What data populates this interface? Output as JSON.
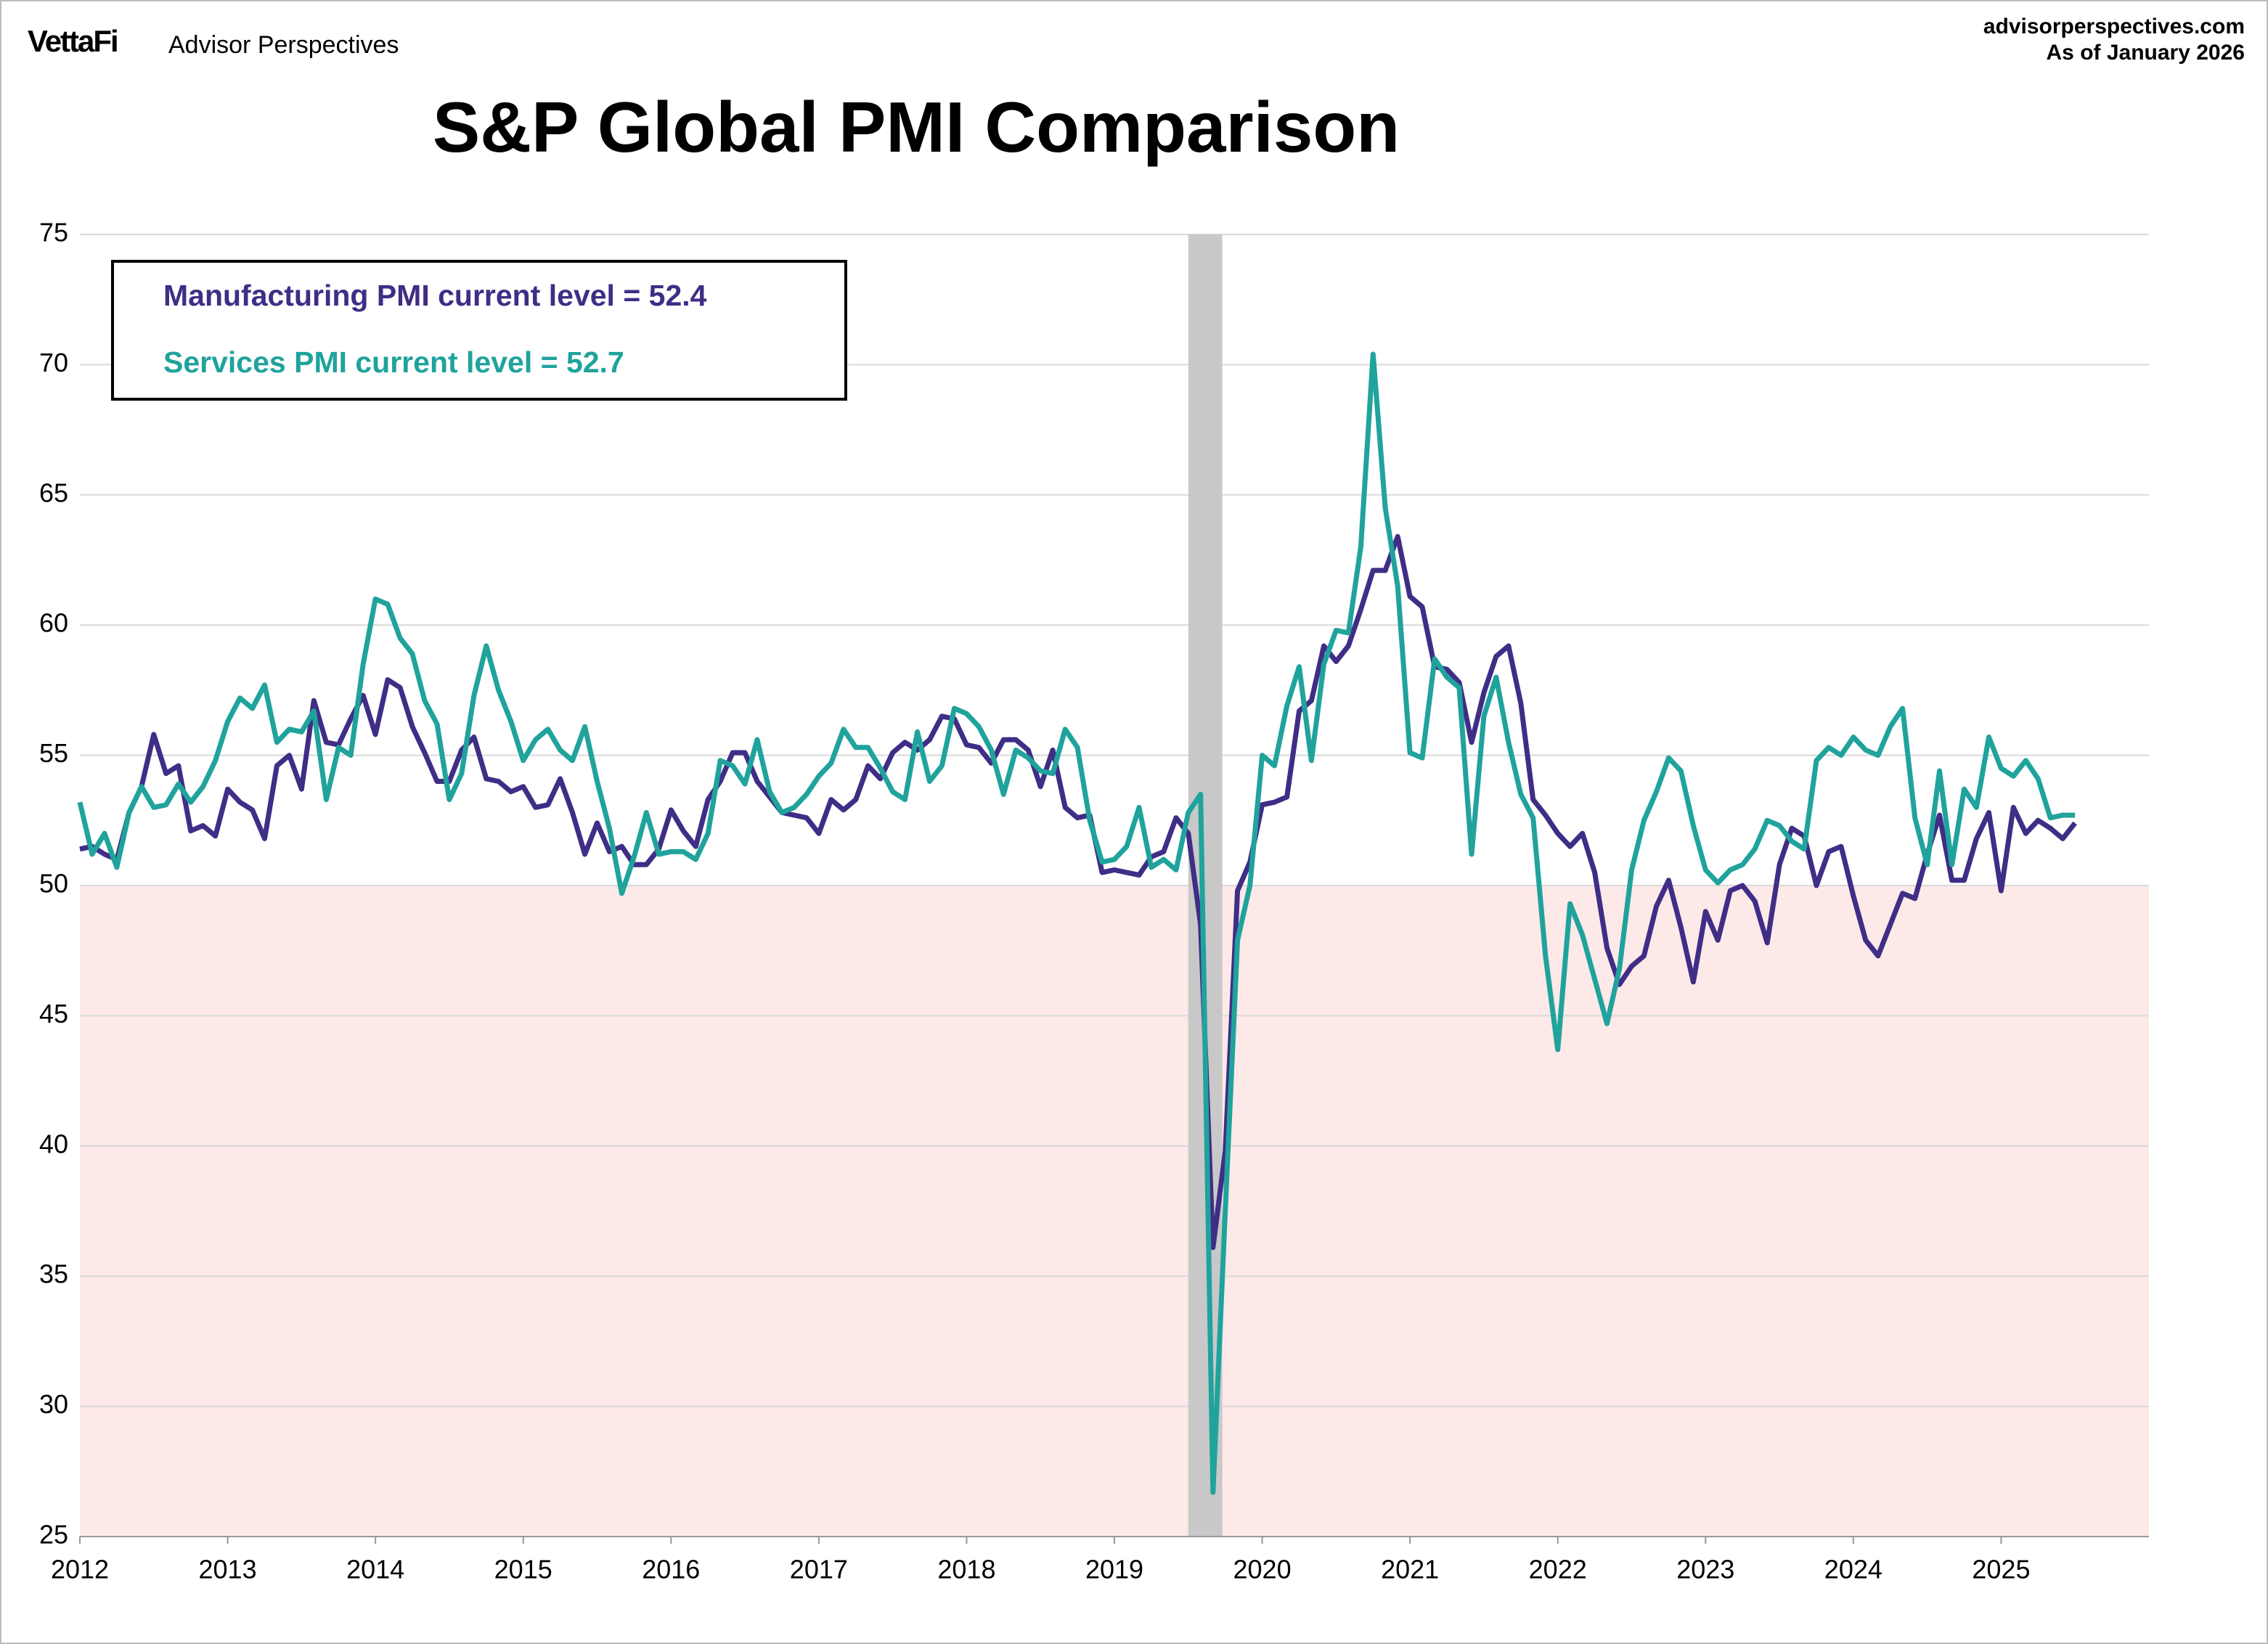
{
  "header": {
    "brand": "VettaFi",
    "publisher": "Advisor Perspectives",
    "site": "advisorperspectives.com",
    "date": "As of January 2026"
  },
  "chart_data": {
    "type": "line",
    "title": "S&P Global PMI Comparison",
    "annotations": [
      {
        "text": "Manufacturing PMI current level = 52.4",
        "color": "#3f2d86"
      },
      {
        "text": "Services PMI current level = 52.7",
        "color": "#1fa39c"
      }
    ],
    "x": [
      2012,
      2012.083,
      2012.167,
      2012.25,
      2012.333,
      2012.417,
      2012.5,
      2012.583,
      2012.667,
      2012.75,
      2012.833,
      2012.917,
      2013,
      2013.083,
      2013.167,
      2013.25,
      2013.333,
      2013.417,
      2013.5,
      2013.583,
      2013.667,
      2013.75,
      2013.833,
      2013.917,
      2014,
      2014.083,
      2014.167,
      2014.25,
      2014.333,
      2014.417,
      2014.5,
      2014.583,
      2014.667,
      2014.75,
      2014.833,
      2014.917,
      2015,
      2015.083,
      2015.167,
      2015.25,
      2015.333,
      2015.417,
      2015.5,
      2015.583,
      2015.667,
      2015.75,
      2015.833,
      2015.917,
      2016,
      2016.083,
      2016.167,
      2016.25,
      2016.333,
      2016.417,
      2016.5,
      2016.583,
      2016.667,
      2016.75,
      2016.833,
      2016.917,
      2017,
      2017.083,
      2017.167,
      2017.25,
      2017.333,
      2017.417,
      2017.5,
      2017.583,
      2017.667,
      2017.75,
      2017.833,
      2017.917,
      2018,
      2018.083,
      2018.167,
      2018.25,
      2018.333,
      2018.417,
      2018.5,
      2018.583,
      2018.667,
      2018.75,
      2018.833,
      2018.917,
      2019,
      2019.083,
      2019.167,
      2019.25,
      2019.333,
      2019.417,
      2019.5,
      2019.583,
      2019.667,
      2019.75,
      2019.833,
      2019.917,
      2020,
      2020.083,
      2020.167,
      2020.25,
      2020.333,
      2020.417,
      2020.5,
      2020.583,
      2020.667,
      2020.75,
      2020.833,
      2020.917,
      2021,
      2021.083,
      2021.167,
      2021.25,
      2021.333,
      2021.417,
      2021.5,
      2021.583,
      2021.667,
      2021.75,
      2021.833,
      2021.917,
      2022,
      2022.083,
      2022.167,
      2022.25,
      2022.333,
      2022.417,
      2022.5,
      2022.583,
      2022.667,
      2022.75,
      2022.833,
      2022.917,
      2023,
      2023.083,
      2023.167,
      2023.25,
      2023.333,
      2023.417,
      2023.5,
      2023.583,
      2023.667,
      2023.75,
      2023.833,
      2023.917,
      2024,
      2024.083,
      2024.167,
      2024.25,
      2024.333,
      2024.417,
      2024.5,
      2024.583,
      2024.667,
      2024.75,
      2024.833,
      2024.917,
      2025,
      2025.083,
      2025.167,
      2025.25,
      2025.333,
      2025.417,
      2025.5
    ],
    "series": [
      {
        "name": "Manufacturing PMI",
        "color": "#3f2d86",
        "values": [
          51.4,
          51.5,
          51.2,
          51.0,
          52.8,
          53.8,
          55.8,
          54.3,
          54.6,
          52.1,
          52.3,
          51.9,
          53.7,
          53.2,
          52.9,
          51.8,
          54.6,
          55.0,
          53.7,
          57.1,
          55.5,
          55.4,
          56.4,
          57.3,
          55.8,
          57.9,
          57.6,
          56.1,
          55.1,
          54.0,
          54.0,
          55.2,
          55.7,
          54.1,
          54.0,
          53.6,
          53.8,
          53.0,
          53.1,
          54.1,
          52.8,
          51.2,
          52.4,
          51.3,
          51.5,
          50.8,
          50.8,
          51.4,
          52.9,
          52.1,
          51.5,
          53.3,
          54.0,
          55.1,
          55.1,
          54.0,
          53.4,
          52.8,
          52.7,
          52.6,
          52.0,
          53.3,
          52.9,
          53.3,
          54.6,
          54.1,
          55.1,
          55.5,
          55.2,
          55.6,
          56.5,
          56.4,
          55.4,
          55.3,
          54.7,
          55.6,
          55.6,
          55.2,
          53.8,
          55.2,
          53.0,
          52.6,
          52.7,
          50.5,
          50.6,
          50.5,
          50.4,
          51.1,
          51.3,
          52.6,
          52.0,
          48.5,
          36.1,
          39.8,
          49.8,
          50.9,
          53.1,
          53.2,
          53.4,
          56.7,
          57.1,
          59.2,
          58.6,
          59.2,
          60.6,
          62.1,
          62.1,
          63.4,
          61.1,
          60.7,
          58.4,
          58.3,
          57.8,
          55.5,
          57.4,
          58.8,
          59.2,
          57.0,
          53.3,
          52.7,
          52.0,
          51.5,
          52.0,
          50.5,
          47.6,
          46.2,
          46.9,
          47.3,
          49.2,
          50.2,
          48.4,
          46.3,
          49.0,
          47.9,
          49.8,
          50.0,
          49.4,
          47.8,
          50.8,
          52.2,
          51.9,
          50.0,
          51.3,
          51.5,
          49.6,
          47.9,
          47.3,
          48.5,
          49.7,
          49.5,
          51.2,
          52.7,
          50.2,
          50.2,
          51.8,
          52.8,
          49.8,
          53.0,
          52.0,
          52.5,
          52.2,
          51.8,
          52.4
        ]
      },
      {
        "name": "Services PMI",
        "color": "#1fa39c",
        "values": [
          53.2,
          51.2,
          52.0,
          50.7,
          52.8,
          53.8,
          53.0,
          53.1,
          53.9,
          53.2,
          53.8,
          54.8,
          56.3,
          57.2,
          56.8,
          57.7,
          55.5,
          56.0,
          55.9,
          56.7,
          53.3,
          55.3,
          55.0,
          58.5,
          61.0,
          60.8,
          59.5,
          58.9,
          57.1,
          56.2,
          53.3,
          54.3,
          57.3,
          59.2,
          57.5,
          56.3,
          54.8,
          55.6,
          56.0,
          55.2,
          54.8,
          56.1,
          54.0,
          52.2,
          49.7,
          51.1,
          52.8,
          51.2,
          51.3,
          51.3,
          51.0,
          52.0,
          54.8,
          54.6,
          53.9,
          55.6,
          53.6,
          52.8,
          53.0,
          53.5,
          54.2,
          54.7,
          56.0,
          55.3,
          55.3,
          54.5,
          53.6,
          53.3,
          55.9,
          54.0,
          54.6,
          56.8,
          56.6,
          56.1,
          55.2,
          53.5,
          55.2,
          54.9,
          54.4,
          54.3,
          56.0,
          55.3,
          52.5,
          50.9,
          51.0,
          51.5,
          53.0,
          50.7,
          51.0,
          50.6,
          52.8,
          53.5,
          26.7,
          37.5,
          47.9,
          50.0,
          55.0,
          54.6,
          56.9,
          58.4,
          54.8,
          58.5,
          59.8,
          59.7,
          63.0,
          70.4,
          64.5,
          61.5,
          55.1,
          54.9,
          58.7,
          58.0,
          57.6,
          51.2,
          56.5,
          58.0,
          55.5,
          53.5,
          52.6,
          47.3,
          43.7,
          49.3,
          48.1,
          46.4,
          44.7,
          46.8,
          50.6,
          52.5,
          53.6,
          54.9,
          54.4,
          52.3,
          50.6,
          50.1,
          50.6,
          50.8,
          51.4,
          52.5,
          52.3,
          51.7,
          51.4,
          54.8,
          55.3,
          55.0,
          55.7,
          55.2,
          55.0,
          56.1,
          56.8,
          52.6,
          50.8,
          54.4,
          50.8,
          53.7,
          53.0,
          55.7,
          54.5,
          54.2,
          54.8,
          54.1,
          52.6,
          52.7,
          52.7
        ]
      }
    ],
    "xlim": [
      2012,
      2026
    ],
    "xticks": [
      2012,
      2013,
      2014,
      2015,
      2016,
      2017,
      2018,
      2019,
      2020,
      2021,
      2022,
      2023,
      2024,
      2025
    ],
    "ylim": [
      25,
      75
    ],
    "yticks": [
      25,
      30,
      35,
      40,
      45,
      50,
      55,
      60,
      65,
      70,
      75
    ],
    "grid": true,
    "contraction_below": 50,
    "contraction_color": "#fde9e8",
    "shaded_period": [
      2019.5,
      2019.73
    ],
    "shaded_color": "#c8c8c8"
  }
}
